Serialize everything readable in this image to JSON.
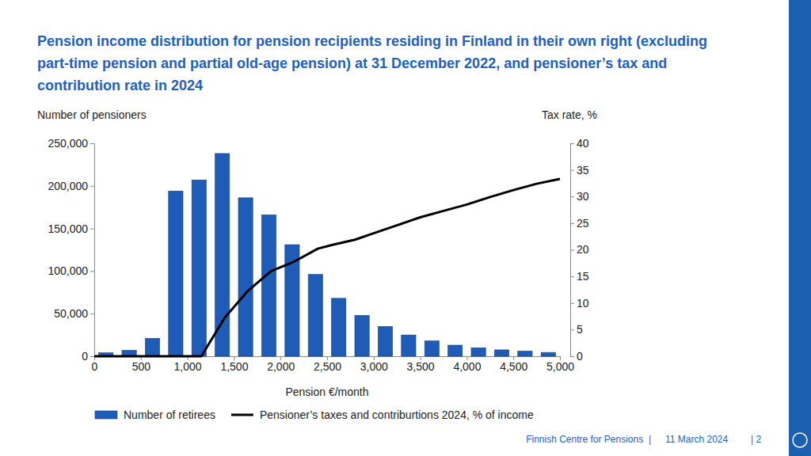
{
  "chart_data": {
    "type": "bar",
    "title": "Pension income distribution for pension recipients residing in Finland in their own right (excluding part-time pension and partial old-age pension) at 31 December 2022, and pensioner’s tax and contribution rate in 2024",
    "x_label": "Pension €/month",
    "y_label": "Number of pensioners",
    "y2_label": "Tax rate, %",
    "annotations": [
      "Finnish Centre for Pensions  |",
      "11 March 2024",
      "| 2"
    ],
    "bins": [
      0,
      250,
      500,
      750,
      1000,
      1250,
      1500,
      1750,
      2000,
      2250,
      2500,
      2750,
      3000,
      3250,
      3500,
      3750,
      4000,
      4250,
      4500,
      4750,
      5000
    ],
    "xlim": [
      0,
      5000
    ],
    "xticks": [
      0,
      500,
      {
        "value": 1000,
        "label": "1,000"
      },
      {
        "value": 1500,
        "label": "1,500"
      },
      {
        "value": 2000,
        "label": "2,000"
      },
      {
        "value": 2500,
        "label": "2,500"
      },
      {
        "value": 3000,
        "label": "3,000"
      },
      {
        "value": 3500,
        "label": "3,500"
      },
      {
        "value": 4000,
        "label": "4,000"
      },
      {
        "value": 4500,
        "label": "4,500"
      },
      {
        "value": 5000,
        "label": "5,000"
      }
    ],
    "ylim": [
      0,
      250000
    ],
    "yticks": [
      0,
      {
        "value": 50000,
        "label": "50,000"
      },
      {
        "value": 100000,
        "label": "100,000"
      },
      {
        "value": 150000,
        "label": "150,000"
      },
      {
        "value": 200000,
        "label": "200,000"
      },
      {
        "value": 250000,
        "label": "250,000"
      }
    ],
    "y2lim": [
      0,
      40
    ],
    "y2ticks": [
      0,
      5,
      10,
      15,
      20,
      25,
      30,
      35,
      40
    ],
    "grid": false,
    "legend": "bottom",
    "series": [
      {
        "name": "Number of retirees",
        "type": "histogram",
        "color": "#1f5cb8",
        "values": [
          4000,
          7000,
          21000,
          194000,
          207000,
          238000,
          186000,
          166000,
          131000,
          96000,
          68000,
          48000,
          35000,
          25000,
          18000,
          13000,
          10000,
          7500,
          6000,
          4500
        ]
      },
      {
        "name": "Pensioner’s taxes and contriburtions 2024, % of  income",
        "type": "line",
        "color": "#000000",
        "axis": "y2",
        "x": [
          0,
          250,
          500,
          750,
          1000,
          1150,
          1400,
          1650,
          1900,
          2150,
          2400,
          2550,
          2800,
          3000,
          3250,
          3500,
          3750,
          4000,
          4250,
          4500,
          4750,
          5000
        ],
        "values": [
          0,
          0,
          0,
          0,
          0,
          0,
          7.2,
          12.3,
          16,
          17.8,
          20.2,
          20.9,
          21.9,
          23.1,
          24.6,
          26.1,
          27.3,
          28.5,
          29.9,
          31.2,
          32.4,
          33.3
        ]
      }
    ]
  }
}
